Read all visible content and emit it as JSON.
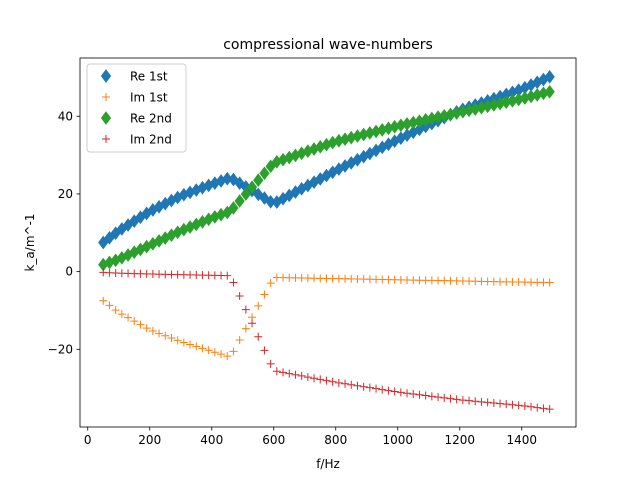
{
  "chart_data": {
    "type": "scatter",
    "title": "compressional wave-numbers",
    "xlabel": "f/Hz",
    "ylabel": "k_a/m^-1",
    "xlim": [
      -25,
      1575
    ],
    "ylim": [
      -40,
      55
    ],
    "xticks": [
      0,
      200,
      400,
      600,
      800,
      1000,
      1200,
      1400
    ],
    "yticks": [
      -20,
      0,
      20,
      40
    ],
    "ytick_labels": [
      "−20",
      "0",
      "20",
      "40"
    ],
    "grid": false,
    "legend_position": "top-left",
    "f_range": [
      50,
      1500,
      20
    ],
    "switch_at": 460,
    "series": [
      {
        "name": "Re 1st",
        "marker": "diamond",
        "color": "#1f77b4",
        "x": [
          50,
          100,
          200,
          300,
          400,
          460,
          600,
          800,
          1000,
          1200,
          1400,
          1500
        ],
        "y": [
          7.5,
          10.5,
          15.5,
          19.5,
          22.5,
          24.2,
          17.5,
          26,
          34,
          41.5,
          47,
          50.5
        ]
      },
      {
        "name": "Im 1st",
        "marker": "plus",
        "color": "#ff7f0e",
        "x": [
          50,
          100,
          200,
          300,
          400,
          460,
          600,
          800,
          1000,
          1200,
          1400,
          1500
        ],
        "y": [
          -7.5,
          -10.5,
          -15,
          -18,
          -20.5,
          -22,
          -1.5,
          -1.8,
          -2.1,
          -2.4,
          -2.7,
          -2.8
        ]
      },
      {
        "name": "Re 2nd",
        "marker": "diamond",
        "color": "#2ca02c",
        "x": [
          50,
          100,
          200,
          300,
          400,
          460,
          600,
          800,
          1000,
          1200,
          1400,
          1500
        ],
        "y": [
          1.8,
          3.2,
          6.8,
          10.5,
          13.8,
          15.5,
          28,
          33.5,
          37.5,
          41,
          44.5,
          46.5
        ]
      },
      {
        "name": "Im 2nd",
        "marker": "plus",
        "color": "#d62728",
        "x": [
          50,
          100,
          200,
          300,
          400,
          460,
          600,
          800,
          1000,
          1200,
          1400,
          1500
        ],
        "y": [
          -0.2,
          -0.4,
          -0.6,
          -0.8,
          -0.95,
          -1.05,
          -25.5,
          -28.5,
          -31,
          -33,
          -34.5,
          -35.5
        ]
      }
    ]
  }
}
